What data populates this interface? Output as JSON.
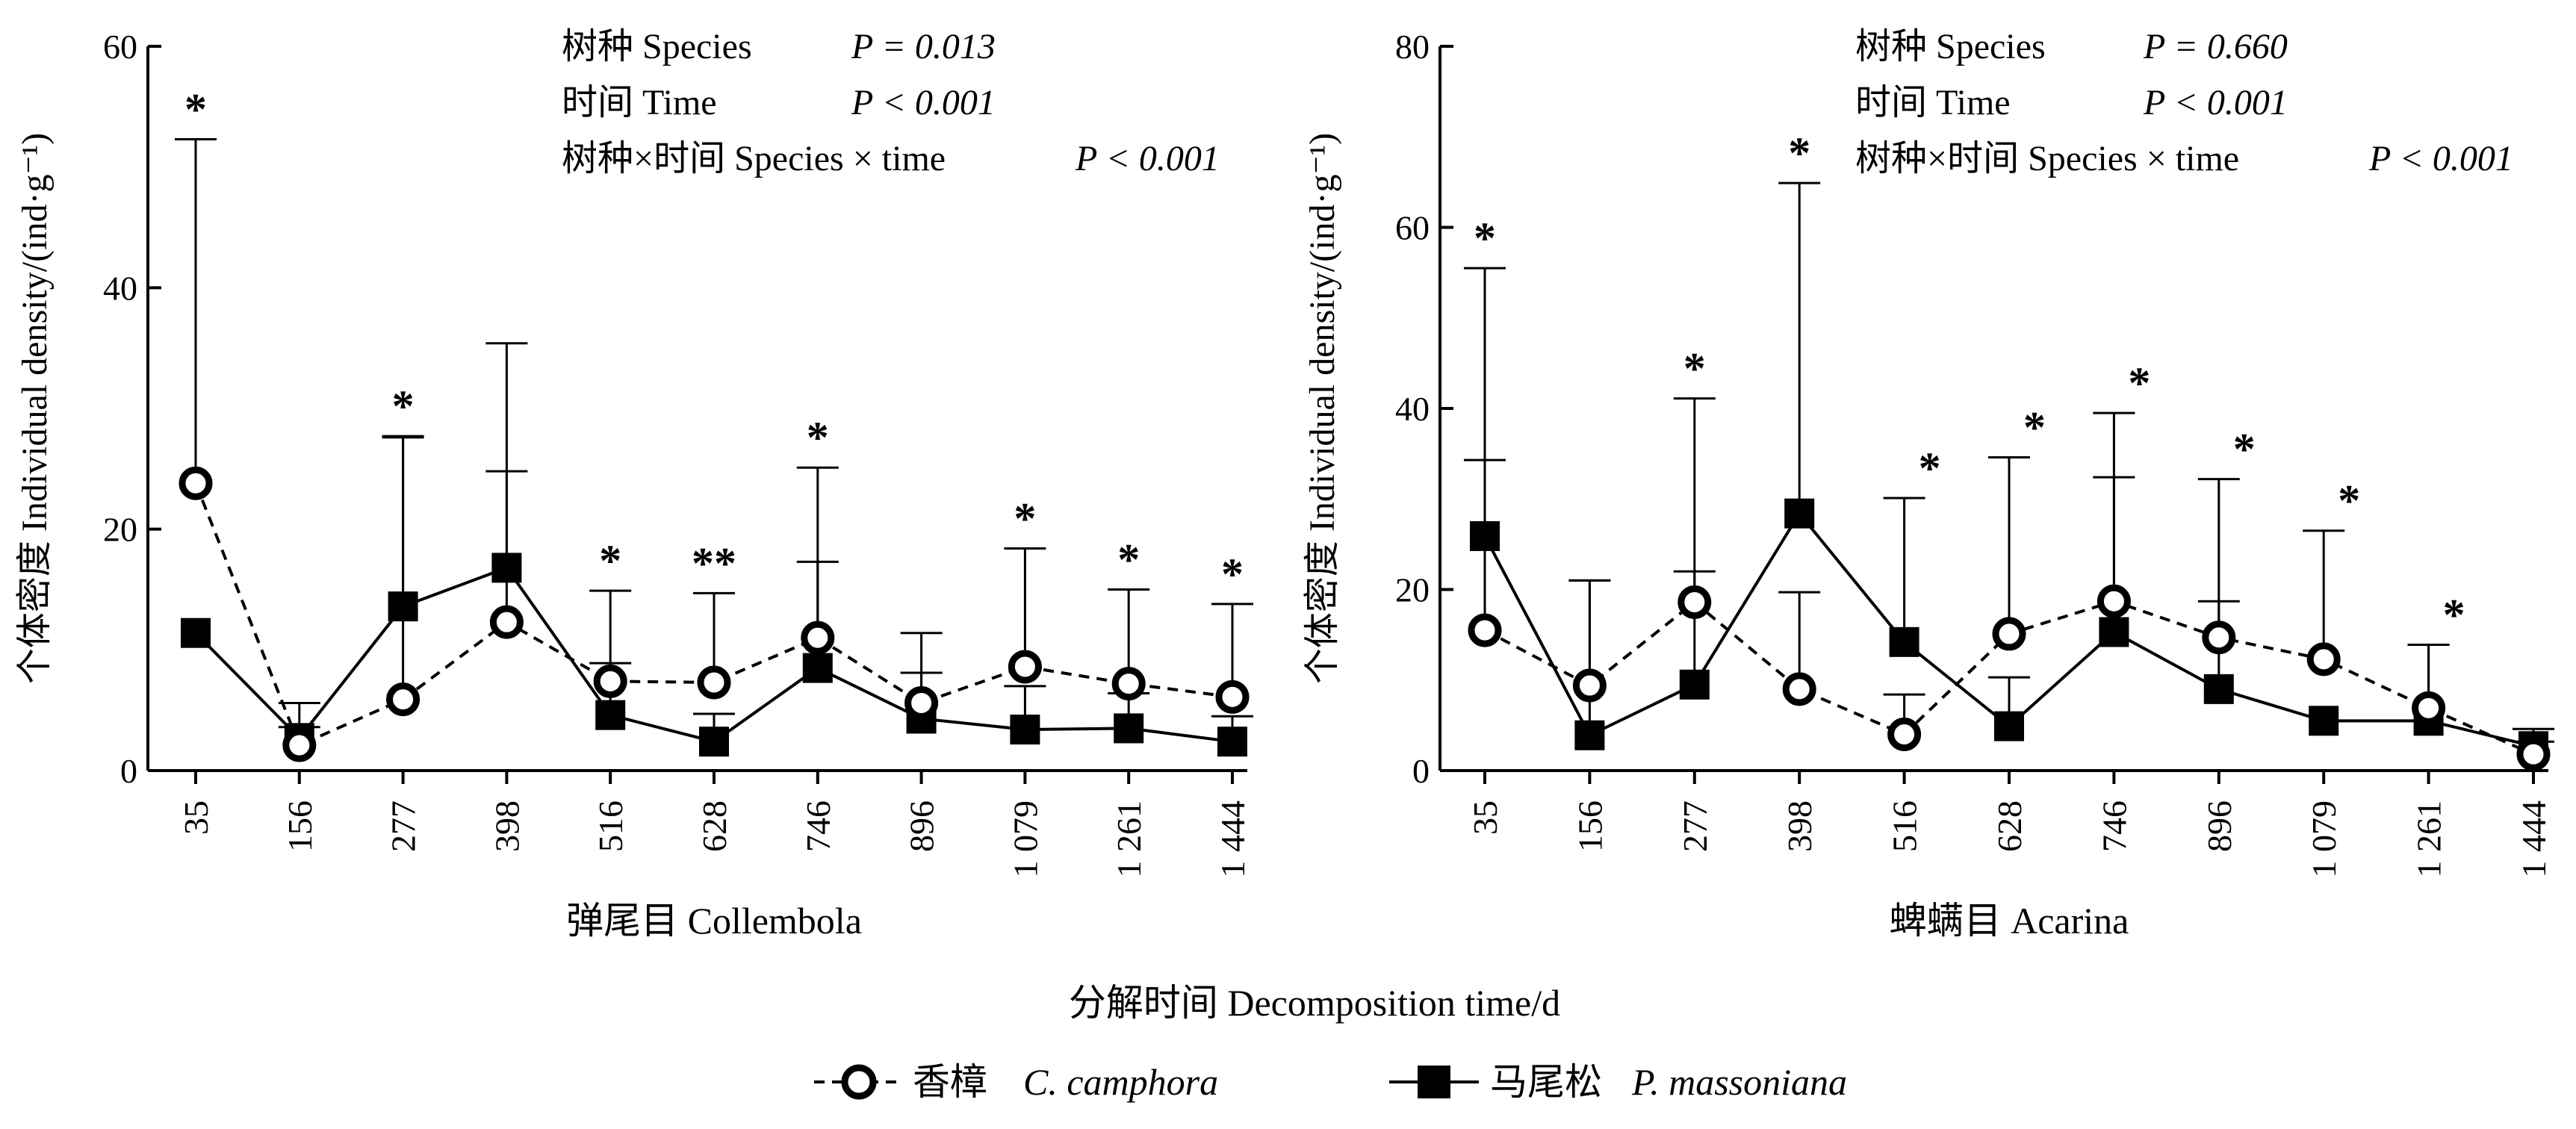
{
  "chart_data": [
    {
      "type": "line",
      "panel_label": "弹尾目 Collembola",
      "ylabel": "个体密度 Individual density/(ind·g⁻¹)",
      "ylim": [
        0,
        60
      ],
      "yticks": [
        0,
        20,
        40,
        60
      ],
      "categories": [
        "35",
        "156",
        "277",
        "398",
        "516",
        "628",
        "746",
        "896",
        "1 079",
        "1 261",
        "1 444"
      ],
      "stats": [
        {
          "label": "树种  Species",
          "p": "P = 0.013"
        },
        {
          "label": "时间  Time",
          "p": "P < 0.001"
        },
        {
          "label": "树种×时间  Species × time",
          "p": "P < 0.001"
        }
      ],
      "significance": [
        "*",
        "",
        "*",
        "",
        "*",
        "**",
        "*",
        "",
        "*",
        "*",
        "*"
      ],
      "series": [
        {
          "name": "香樟 C. camphora",
          "values": [
            23.8,
            2.1,
            5.9,
            12.3,
            7.4,
            7.3,
            11.0,
            5.6,
            8.6,
            7.2,
            6.1
          ],
          "error": [
            28.5,
            1.5,
            21.7,
            12.5,
            7.5,
            7.4,
            14.1,
            5.8,
            9.8,
            7.8,
            7.7
          ]
        },
        {
          "name": "马尾松 P. massoniana",
          "values": [
            11.4,
            2.7,
            13.6,
            16.8,
            4.6,
            2.4,
            8.5,
            4.3,
            3.4,
            3.5,
            2.4
          ],
          "error": [
            0,
            2.9,
            14.1,
            18.6,
            4.3,
            2.3,
            8.8,
            3.8,
            3.6,
            2.9,
            2.1
          ]
        }
      ]
    },
    {
      "type": "line",
      "panel_label": "蜱螨目 Acarina",
      "ylabel": "个体密度 Individual density/(ind·g⁻¹)",
      "ylim": [
        0,
        80
      ],
      "yticks": [
        0,
        20,
        40,
        60,
        80
      ],
      "categories": [
        "35",
        "156",
        "277",
        "398",
        "516",
        "628",
        "746",
        "896",
        "1 079",
        "1 261",
        "1 444"
      ],
      "stats": [
        {
          "label": "树种  Species",
          "p": "P = 0.660"
        },
        {
          "label": "时间  Time",
          "p": "P < 0.001"
        },
        {
          "label": "树种×时间  Species × time",
          "p": "P < 0.001"
        }
      ],
      "significance": [
        "*",
        "",
        "*",
        "*",
        "*",
        "*",
        "*",
        "*",
        "*",
        "*",
        ""
      ],
      "series": [
        {
          "name": "香樟 C. camphora",
          "values": [
            15.5,
            9.4,
            18.6,
            9.0,
            4.0,
            15.1,
            18.7,
            14.7,
            12.3,
            6.9,
            1.8
          ],
          "error": [
            40.0,
            11.6,
            22.5,
            10.7,
            4.4,
            19.5,
            20.8,
            17.5,
            14.2,
            7.0,
            1.4
          ]
        },
        {
          "name": "马尾松 P. massoniana",
          "values": [
            25.9,
            3.9,
            9.5,
            28.4,
            14.2,
            4.9,
            15.3,
            9.0,
            5.5,
            5.5,
            2.7
          ],
          "error": [
            8.4,
            17.1,
            12.5,
            36.5,
            15.9,
            5.4,
            17.1,
            9.7,
            0,
            8.4,
            1.9
          ]
        }
      ]
    }
  ],
  "xaxis_title": "分解时间  Decomposition time/d",
  "legend": {
    "items": [
      {
        "label_cn": "香樟",
        "label_latin": "C. camphora",
        "marker": "open-circle",
        "line": "dashed"
      },
      {
        "label_cn": "马尾松",
        "label_latin": "P. massoniana",
        "marker": "filled-square",
        "line": "solid"
      }
    ]
  }
}
